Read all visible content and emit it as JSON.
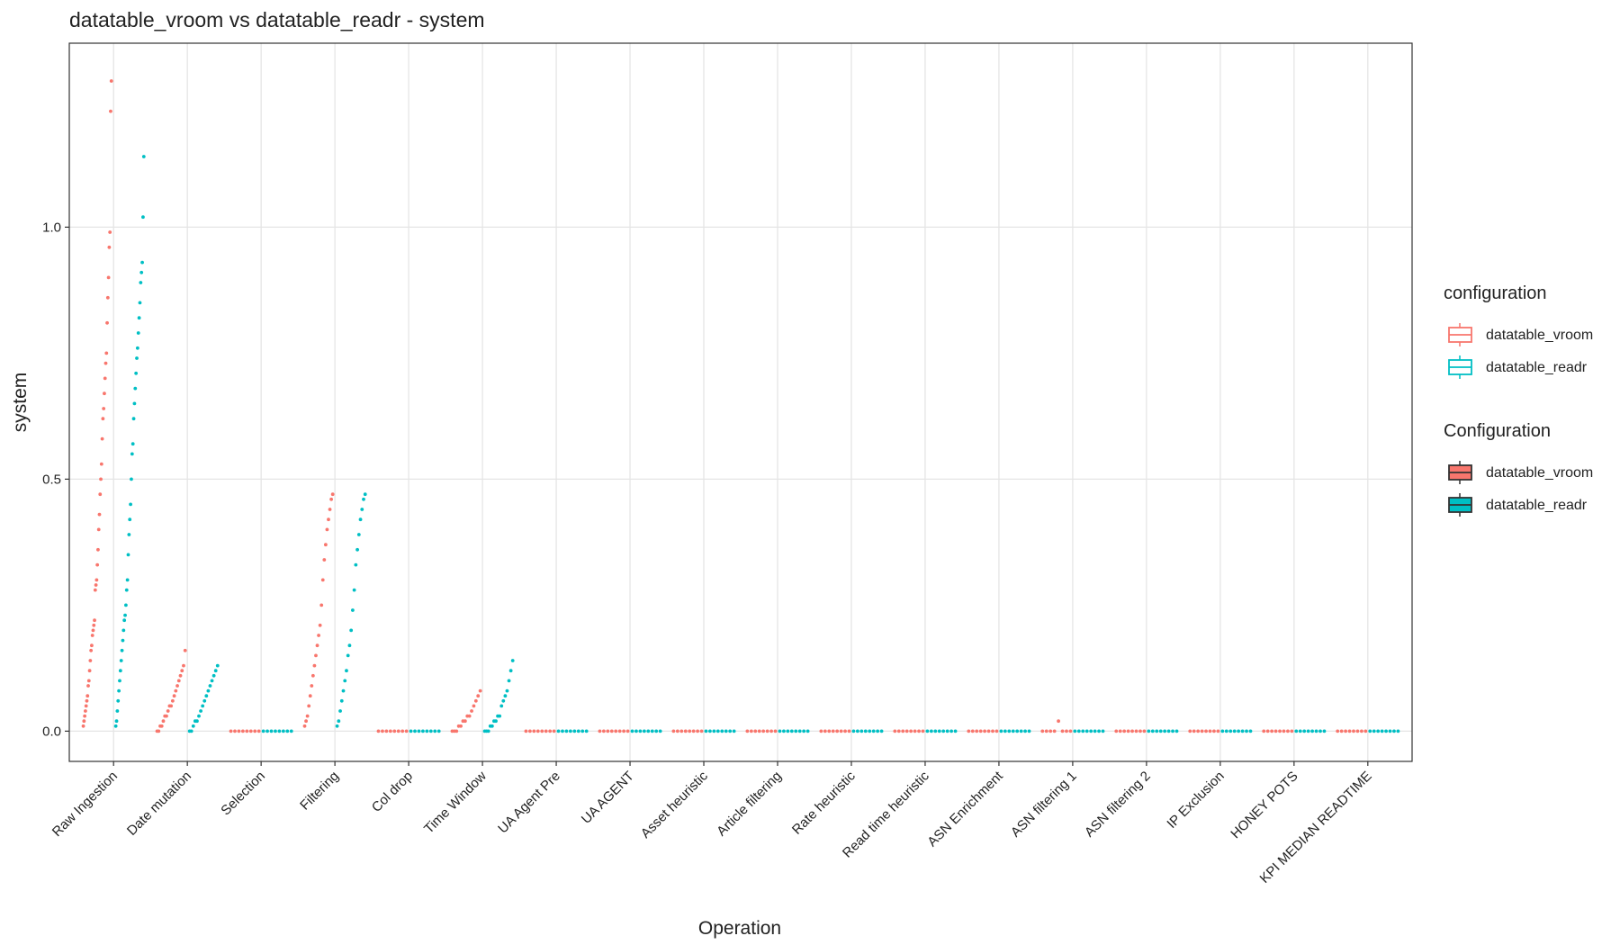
{
  "chart_data": {
    "type": "strip",
    "title": "datatable_vroom vs datatable_readr - system",
    "x_label": "Operation",
    "y_label": "system",
    "categories": [
      "Raw Ingestion",
      "Date mutation",
      "Selection",
      "Filtering",
      "Col drop",
      "Time Window",
      "UA Agent Pre",
      "UA AGENT",
      "Asset heuristic",
      "Article filtering",
      "Rate heuristic",
      "Read time heuristic",
      "ASN Enrichment",
      "ASN filtering 1",
      "ASN filtering 2",
      "IP Exclusion",
      "HONEY POTS",
      "KPI MEDIAN READTIME"
    ],
    "ylim": [
      -0.06,
      1.365
    ],
    "yticks": [
      {
        "value": 0,
        "label": "0.0"
      },
      0.5,
      {
        "value": 1,
        "label": "1.0"
      }
    ],
    "grid": true,
    "legends": [
      {
        "title": "configuration",
        "style": "outline"
      },
      {
        "title": "Configuration",
        "style": "filled"
      }
    ],
    "series": [
      {
        "name": "datatable_vroom",
        "color": "#F8766D",
        "values": [
          [
            0.01,
            0.02,
            0.03,
            0.04,
            0.05,
            0.06,
            0.07,
            0.09,
            0.1,
            0.12,
            0.14,
            0.16,
            0.17,
            0.19,
            0.2,
            0.21,
            0.22,
            0.28,
            0.29,
            0.3,
            0.33,
            0.36,
            0.4,
            0.43,
            0.47,
            0.5,
            0.53,
            0.58,
            0.62,
            0.64,
            0.67,
            0.7,
            0.73,
            0.75,
            0.81,
            0.86,
            0.9,
            0.96,
            0.99,
            1.23,
            1.29
          ],
          [
            0,
            0,
            0.01,
            0.01,
            0.02,
            0.03,
            0.03,
            0.04,
            0.05,
            0.05,
            0.06,
            0.07,
            0.08,
            0.09,
            0.1,
            0.11,
            0.12,
            0.13,
            0.16
          ],
          [
            0,
            0,
            0,
            0,
            0,
            0,
            0,
            0
          ],
          [
            0.01,
            0.02,
            0.03,
            0.05,
            0.07,
            0.09,
            0.11,
            0.13,
            0.15,
            0.17,
            0.19,
            0.21,
            0.25,
            0.3,
            0.34,
            0.37,
            0.4,
            0.42,
            0.44,
            0.46,
            0.47
          ],
          [
            0,
            0,
            0,
            0,
            0,
            0,
            0,
            0
          ],
          [
            0,
            0,
            0,
            0.01,
            0.01,
            0.02,
            0.02,
            0.03,
            0.03,
            0.04,
            0.05,
            0.06,
            0.07,
            0.08
          ],
          [
            0,
            0,
            0,
            0,
            0,
            0,
            0,
            0
          ],
          [
            0,
            0,
            0,
            0,
            0,
            0,
            0,
            0
          ],
          [
            0,
            0,
            0,
            0,
            0,
            0,
            0,
            0
          ],
          [
            0,
            0,
            0,
            0,
            0,
            0,
            0,
            0
          ],
          [
            0,
            0,
            0,
            0,
            0,
            0,
            0,
            0
          ],
          [
            0,
            0,
            0,
            0,
            0,
            0,
            0,
            0
          ],
          [
            0,
            0,
            0,
            0,
            0,
            0,
            0,
            0
          ],
          [
            0,
            0,
            0,
            0,
            0.02,
            0,
            0,
            0
          ],
          [
            0,
            0,
            0,
            0,
            0,
            0,
            0,
            0
          ],
          [
            0,
            0,
            0,
            0,
            0,
            0,
            0,
            0
          ],
          [
            0,
            0,
            0,
            0,
            0,
            0,
            0,
            0
          ],
          [
            0,
            0,
            0,
            0,
            0,
            0,
            0,
            0
          ]
        ]
      },
      {
        "name": "datatable_readr",
        "color": "#00BFC4",
        "values": [
          [
            0.01,
            0.02,
            0.04,
            0.06,
            0.08,
            0.1,
            0.12,
            0.14,
            0.16,
            0.18,
            0.2,
            0.22,
            0.23,
            0.25,
            0.28,
            0.3,
            0.35,
            0.39,
            0.42,
            0.45,
            0.5,
            0.55,
            0.57,
            0.62,
            0.65,
            0.68,
            0.71,
            0.74,
            0.76,
            0.79,
            0.82,
            0.85,
            0.89,
            0.91,
            0.93,
            1.02,
            1.14
          ],
          [
            0,
            0,
            0.01,
            0.02,
            0.02,
            0.03,
            0.04,
            0.05,
            0.06,
            0.07,
            0.08,
            0.09,
            0.1,
            0.11,
            0.12,
            0.13
          ],
          [
            0,
            0,
            0,
            0,
            0,
            0,
            0,
            0
          ],
          [
            0.01,
            0.02,
            0.04,
            0.06,
            0.08,
            0.1,
            0.12,
            0.15,
            0.17,
            0.2,
            0.24,
            0.28,
            0.33,
            0.36,
            0.39,
            0.42,
            0.44,
            0.46,
            0.47
          ],
          [
            0,
            0,
            0,
            0,
            0,
            0,
            0,
            0
          ],
          [
            0,
            0,
            0,
            0.01,
            0.01,
            0.02,
            0.02,
            0.03,
            0.03,
            0.05,
            0.06,
            0.07,
            0.08,
            0.1,
            0.12,
            0.14
          ],
          [
            0,
            0,
            0,
            0,
            0,
            0,
            0,
            0
          ],
          [
            0,
            0,
            0,
            0,
            0,
            0,
            0,
            0
          ],
          [
            0,
            0,
            0,
            0,
            0,
            0,
            0,
            0
          ],
          [
            0,
            0,
            0,
            0,
            0,
            0,
            0,
            0
          ],
          [
            0,
            0,
            0,
            0,
            0,
            0,
            0,
            0
          ],
          [
            0,
            0,
            0,
            0,
            0,
            0,
            0,
            0
          ],
          [
            0,
            0,
            0,
            0,
            0,
            0,
            0,
            0
          ],
          [
            0,
            0,
            0,
            0,
            0,
            0,
            0,
            0
          ],
          [
            0,
            0,
            0,
            0,
            0,
            0,
            0,
            0
          ],
          [
            0,
            0,
            0,
            0,
            0,
            0,
            0,
            0
          ],
          [
            0,
            0,
            0,
            0,
            0,
            0,
            0,
            0
          ],
          [
            0,
            0,
            0,
            0,
            0,
            0,
            0,
            0
          ]
        ]
      }
    ]
  }
}
